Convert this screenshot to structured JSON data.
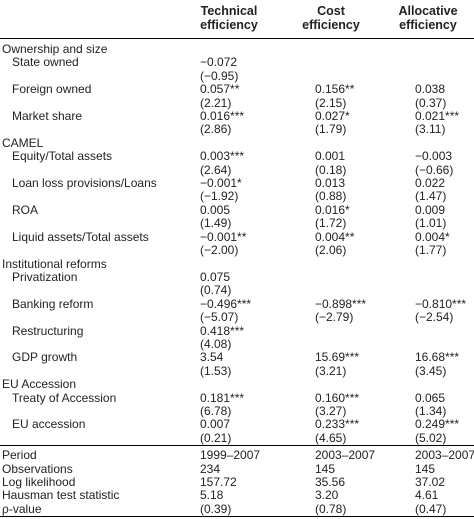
{
  "header": {
    "columns": [
      [
        "Technical",
        "efficiency"
      ],
      [
        "Cost",
        "efficiency"
      ],
      [
        "Allocative",
        "efficiency"
      ]
    ]
  },
  "sections": [
    {
      "title": "Ownership and size",
      "rows": [
        {
          "label": "State owned",
          "cells": [
            {
              "value": "−0.072",
              "se": "(−0.95)"
            },
            null,
            null
          ]
        },
        {
          "label": "Foreign owned",
          "cells": [
            {
              "value": "0.057**",
              "se": "(2.21)"
            },
            {
              "value": "0.156**",
              "se": "(2.15)"
            },
            {
              "value": "0.038",
              "se": "(0.37)"
            }
          ]
        },
        {
          "label": "Market share",
          "cells": [
            {
              "value": "0.016***",
              "se": "(2.86)"
            },
            {
              "value": "0.027*",
              "se": "(1.79)"
            },
            {
              "value": "0.021***",
              "se": "(3.11)"
            }
          ]
        }
      ]
    },
    {
      "title": "CAMEL",
      "rows": [
        {
          "label": "Equity/Total assets",
          "cells": [
            {
              "value": "0.003***",
              "se": "(2.64)"
            },
            {
              "value": "0.001",
              "se": "(0.18)"
            },
            {
              "value": "−0.003",
              "se": "(−0.66)"
            }
          ]
        },
        {
          "label": "Loan loss provisions/Loans",
          "cells": [
            {
              "value": "−0.001*",
              "se": "(−1.92)"
            },
            {
              "value": "0.013",
              "se": "(0.88)"
            },
            {
              "value": "0.022",
              "se": "(1.47)"
            }
          ]
        },
        {
          "label": "ROA",
          "cells": [
            {
              "value": "0.005",
              "se": "(1.49)"
            },
            {
              "value": "0.016*",
              "se": "(1.72)"
            },
            {
              "value": "0.009",
              "se": "(1.01)"
            }
          ]
        },
        {
          "label": "Liquid assets/Total assets",
          "cells": [
            {
              "value": "−0.001**",
              "se": "(−2.00)"
            },
            {
              "value": "0.004**",
              "se": "(2.06)"
            },
            {
              "value": "0.004*",
              "se": "(1.77)"
            }
          ]
        }
      ]
    },
    {
      "title": "Institutional reforms",
      "rows": [
        {
          "label": "Privatization",
          "cells": [
            {
              "value": "0.075",
              "se": "(0.74)"
            },
            null,
            null
          ]
        },
        {
          "label": "Banking reform",
          "cells": [
            {
              "value": "−0.496***",
              "se": "(−5.07)"
            },
            {
              "value": "−0.898***",
              "se": "(−2.79)"
            },
            {
              "value": "−0.810***",
              "se": "(−2.54)"
            }
          ]
        },
        {
          "label": "Restructuring",
          "cells": [
            {
              "value": "0.418***",
              "se": "(4.08)"
            },
            null,
            null
          ]
        },
        {
          "label": "GDP growth",
          "cells": [
            {
              "value": "3.54",
              "se": "(1.53)"
            },
            {
              "value": "15.69***",
              "se": "(3.21)"
            },
            {
              "value": "16.68***",
              "se": "(3.45)"
            }
          ]
        }
      ]
    },
    {
      "title": "EU Accession",
      "rows": [
        {
          "label": "Treaty of Accession",
          "cells": [
            {
              "value": "0.181***",
              "se": "(6.78)"
            },
            {
              "value": "0.160***",
              "se": "(3.27)"
            },
            {
              "value": "0.065",
              "se": "(1.34)"
            }
          ]
        },
        {
          "label": "EU accession",
          "cells": [
            {
              "value": "0.007",
              "se": "(0.21)"
            },
            {
              "value": "0.233***",
              "se": "(4.65)"
            },
            {
              "value": "0.249***",
              "se": "(5.02)"
            }
          ]
        }
      ]
    }
  ],
  "footer": [
    {
      "label": "Period",
      "cells": [
        "1999–2007",
        "2003–2007",
        "2003–2007"
      ]
    },
    {
      "label": "Observations",
      "cells": [
        "234",
        "145",
        "145"
      ]
    },
    {
      "label": "Log likelihood",
      "cells": [
        "157.72",
        "35.56",
        "37.02"
      ]
    },
    {
      "label": "Hausman test statistic",
      "cells": [
        "5.18",
        "3.20",
        "4.61"
      ]
    },
    {
      "label": "ρ-value",
      "cells": [
        "(0.39)",
        "(0.78)",
        "(0.47)"
      ]
    }
  ]
}
